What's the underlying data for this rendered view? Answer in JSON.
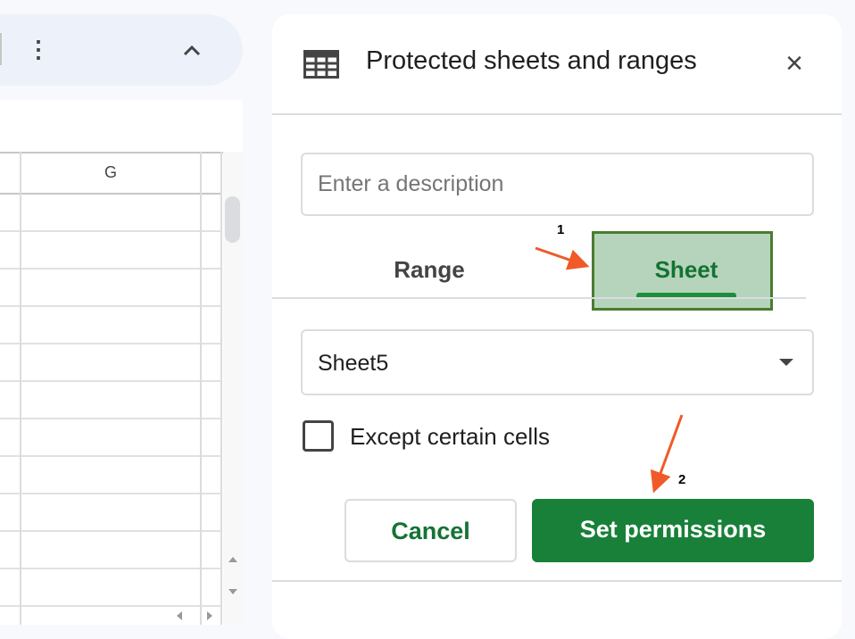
{
  "toolbar": {
    "more_icon": "more-vert-icon",
    "collapse_icon": "chevron-up-icon"
  },
  "sheet": {
    "column_header": "G"
  },
  "panel": {
    "title": "Protected sheets and ranges",
    "description_placeholder": "Enter a description",
    "tabs": [
      {
        "label": "Range",
        "active": false
      },
      {
        "label": "Sheet",
        "active": true
      }
    ],
    "sheet_select": {
      "value": "Sheet5"
    },
    "except_checkbox": {
      "label": "Except certain cells",
      "checked": false
    },
    "cancel_label": "Cancel",
    "set_permissions_label": "Set permissions",
    "accent": "#188038"
  },
  "annotations": {
    "step1": "1",
    "step2": "2",
    "arrow_color": "#f05a28"
  }
}
